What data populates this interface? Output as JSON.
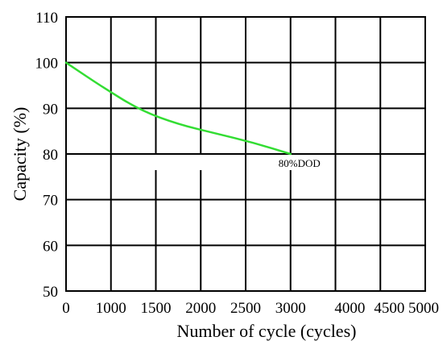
{
  "chart_data": {
    "type": "line",
    "title": "",
    "xlabel": "Number of cycle (cycles)",
    "ylabel": "Capacity (%)",
    "xlim": [
      0,
      5000
    ],
    "ylim": [
      50,
      110
    ],
    "x_tick_labels": [
      "0",
      "1000",
      "1500",
      "2000",
      "2500",
      "3000",
      "4000",
      "4500",
      "5000"
    ],
    "y_ticks": [
      50,
      60,
      70,
      80,
      90,
      100,
      110
    ],
    "y_tick_labels": [
      "50",
      "60",
      "70",
      "80",
      "90",
      "100",
      "110"
    ],
    "grid": true,
    "series": [
      {
        "color": "#33dd33",
        "x": [
          0,
          500,
          1000,
          1500,
          2000,
          2500,
          3000
        ],
        "y": [
          100,
          94.5,
          89.5,
          86.5,
          84.5,
          82.5,
          80
        ]
      }
    ],
    "annotations": [
      {
        "text": "80%DOD",
        "x": 3000,
        "y": 80
      }
    ]
  }
}
